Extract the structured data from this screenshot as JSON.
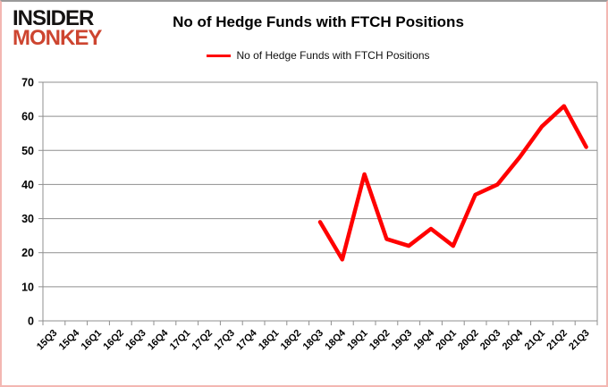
{
  "logo": {
    "line1": "INSIDER",
    "line2": "MONKEY"
  },
  "header": {
    "title": "No of Hedge Funds with FTCH Positions"
  },
  "legend": {
    "label": "No of Hedge Funds with FTCH Positions",
    "color": "#ff0000"
  },
  "colors": {
    "series_red": "#ff0000",
    "logo_red": "#cd4530",
    "grid_gray": "#8f8f8f",
    "frame_pink": "#f3b7b2",
    "text_black": "#000000"
  },
  "chart_data": {
    "type": "line",
    "title": "No of Hedge Funds with FTCH Positions",
    "xlabel": "",
    "ylabel": "",
    "ylim": [
      0,
      70
    ],
    "yticks": [
      0,
      10,
      20,
      30,
      40,
      50,
      60,
      70
    ],
    "grid": true,
    "legend_position": "top",
    "categories": [
      "15Q3",
      "15Q4",
      "16Q1",
      "16Q2",
      "16Q3",
      "16Q4",
      "17Q1",
      "17Q2",
      "17Q3",
      "17Q4",
      "18Q1",
      "18Q2",
      "18Q3",
      "18Q4",
      "19Q1",
      "19Q2",
      "19Q3",
      "19Q4",
      "20Q1",
      "20Q2",
      "20Q3",
      "20Q4",
      "21Q1",
      "21Q2",
      "21Q3"
    ],
    "series": [
      {
        "name": "No of Hedge Funds with FTCH Positions",
        "color": "#ff0000",
        "values": [
          null,
          null,
          null,
          null,
          null,
          null,
          null,
          null,
          null,
          null,
          null,
          null,
          29,
          18,
          43,
          24,
          22,
          27,
          22,
          37,
          40,
          48,
          57,
          63,
          51
        ]
      }
    ]
  }
}
